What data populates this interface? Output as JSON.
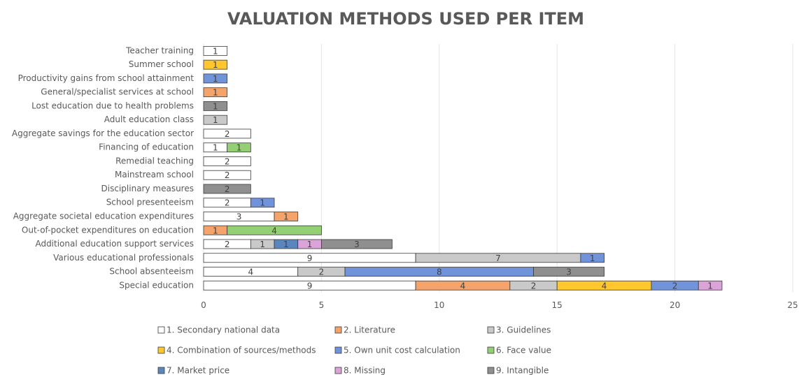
{
  "chart_data": {
    "type": "stacked-bar-horizontal",
    "title": "VALUATION METHODS USED PER ITEM",
    "categories": [
      "Teacher training",
      "Summer school",
      "Productivity gains from school attainment",
      "General/specialist services at school",
      "Lost education due to health problems",
      "Adult education class",
      "Aggregate savings for the education sector",
      "Financing of education",
      "Remedial teaching",
      "Mainstream school",
      "Disciplinary measures",
      "School presenteeism",
      "Aggregate societal education expenditures",
      "Out-of-pocket expenditures on education",
      "Additional education support services",
      "Various educational professionals",
      "School absenteeism",
      "Special education"
    ],
    "series": [
      {
        "name": "1. Secondary national data",
        "color": "#ffffff",
        "values": [
          1,
          null,
          null,
          null,
          null,
          null,
          2,
          1,
          2,
          2,
          null,
          2,
          3,
          null,
          2,
          9,
          4,
          9
        ]
      },
      {
        "name": "2. Literature",
        "color": "#f4a36b",
        "values": [
          null,
          null,
          null,
          1,
          null,
          null,
          null,
          null,
          null,
          null,
          null,
          null,
          1,
          1,
          null,
          null,
          null,
          4
        ]
      },
      {
        "name": "3. Guidelines",
        "color": "#c9c9c9",
        "values": [
          null,
          null,
          null,
          null,
          null,
          1,
          null,
          null,
          null,
          null,
          null,
          null,
          null,
          null,
          1,
          7,
          2,
          2
        ]
      },
      {
        "name": "4. Combination of sources/methods",
        "color": "#ffc62e",
        "values": [
          null,
          1,
          null,
          null,
          null,
          null,
          null,
          null,
          null,
          null,
          null,
          null,
          null,
          null,
          null,
          null,
          null,
          4
        ]
      },
      {
        "name": "5. Own unit cost calculation",
        "color": "#7093da",
        "values": [
          null,
          null,
          1,
          null,
          null,
          null,
          null,
          null,
          null,
          null,
          null,
          1,
          null,
          null,
          null,
          1,
          8,
          2
        ]
      },
      {
        "name": "6. Face value",
        "color": "#93cf73",
        "values": [
          null,
          null,
          null,
          null,
          null,
          null,
          null,
          1,
          null,
          null,
          null,
          null,
          null,
          4,
          null,
          null,
          null,
          null
        ]
      },
      {
        "name": "7. Market price",
        "color": "#5b86bd",
        "values": [
          null,
          null,
          null,
          null,
          null,
          null,
          null,
          null,
          null,
          null,
          null,
          null,
          null,
          null,
          1,
          null,
          null,
          null
        ]
      },
      {
        "name": "8. Missing",
        "color": "#dba4d9",
        "values": [
          null,
          null,
          null,
          null,
          null,
          null,
          null,
          null,
          null,
          null,
          null,
          null,
          null,
          null,
          1,
          null,
          null,
          1
        ]
      },
      {
        "name": "9. Intangible",
        "color": "#8f8f8f",
        "values": [
          null,
          null,
          null,
          null,
          1,
          null,
          null,
          null,
          null,
          null,
          2,
          null,
          null,
          null,
          3,
          null,
          3,
          null
        ]
      }
    ],
    "xlim": [
      0,
      25
    ],
    "xticks": [
      0,
      5,
      10,
      15,
      20,
      25
    ],
    "grid": true
  }
}
